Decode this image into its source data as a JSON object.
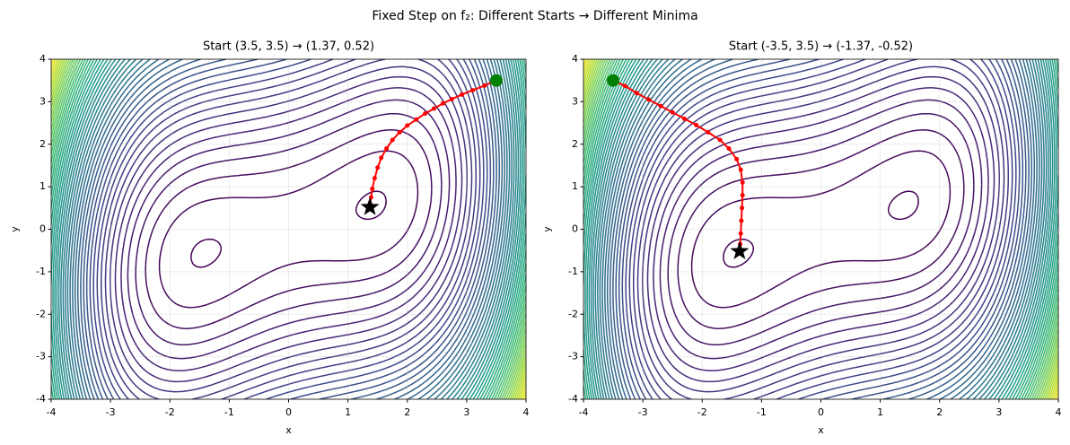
{
  "title": "Fixed Step on f₂: Different Starts → Different Minima",
  "chart_data": [
    {
      "type": "contour",
      "title": "Start (3.5, 3.5) → (1.37, 0.52)",
      "xlabel": "x",
      "ylabel": "y",
      "xlim": [
        -4,
        4
      ],
      "ylim": [
        -4,
        4
      ],
      "xticks": [
        -4,
        -3,
        -2,
        -1,
        0,
        1,
        2,
        3,
        4
      ],
      "yticks": [
        -4,
        -3,
        -2,
        -1,
        0,
        1,
        2,
        3,
        4
      ],
      "grid": true,
      "path": {
        "color": "#ff0000",
        "x": [
          3.5,
          3.3,
          3.1,
          2.92,
          2.75,
          2.6,
          2.45,
          2.3,
          2.15,
          2.0,
          1.87,
          1.75,
          1.65,
          1.56,
          1.5,
          1.45,
          1.41,
          1.39,
          1.37,
          1.37
        ],
        "y": [
          3.5,
          3.38,
          3.27,
          3.17,
          3.06,
          2.96,
          2.84,
          2.72,
          2.58,
          2.44,
          2.28,
          2.1,
          1.9,
          1.68,
          1.45,
          1.2,
          0.95,
          0.75,
          0.6,
          0.52
        ]
      },
      "start": {
        "x": 3.5,
        "y": 3.5,
        "color": "#008000"
      },
      "end": {
        "x": 1.37,
        "y": 0.52,
        "color": "#000000"
      }
    },
    {
      "type": "contour",
      "title": "Start (-3.5, 3.5) → (-1.37, -0.52)",
      "xlabel": "x",
      "ylabel": "y",
      "xlim": [
        -4,
        4
      ],
      "ylim": [
        -4,
        4
      ],
      "xticks": [
        -4,
        -3,
        -2,
        -1,
        0,
        1,
        2,
        3,
        4
      ],
      "yticks": [
        -4,
        -3,
        -2,
        -1,
        0,
        1,
        2,
        3,
        4
      ],
      "grid": true,
      "path": {
        "color": "#ff0000",
        "x": [
          -3.5,
          -3.3,
          -3.1,
          -2.9,
          -2.7,
          -2.5,
          -2.3,
          -2.1,
          -1.9,
          -1.7,
          -1.55,
          -1.42,
          -1.35,
          -1.32,
          -1.32,
          -1.33,
          -1.34,
          -1.35,
          -1.36,
          -1.37
        ],
        "y": [
          3.5,
          3.37,
          3.2,
          3.05,
          2.9,
          2.75,
          2.6,
          2.45,
          2.28,
          2.1,
          1.9,
          1.65,
          1.4,
          1.1,
          0.8,
          0.5,
          0.2,
          -0.1,
          -0.35,
          -0.52
        ]
      },
      "start": {
        "x": -3.5,
        "y": 3.5,
        "color": "#008000"
      },
      "end": {
        "x": -1.37,
        "y": -0.52,
        "color": "#000000"
      }
    }
  ]
}
